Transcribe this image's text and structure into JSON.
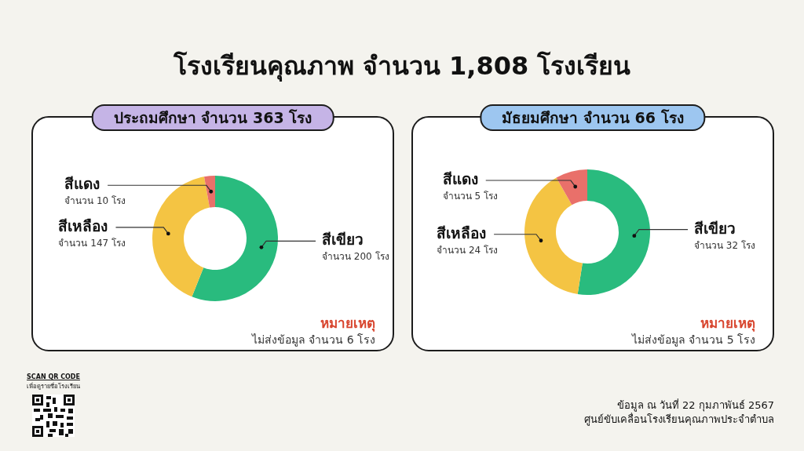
{
  "chart_data": [
    {
      "type": "other",
      "title": "โรงเรียนคุณภาพ จำนวน 1,808 โรงเรียน"
    },
    {
      "type": "donut",
      "title": "ประถมศึกษา จำนวน 363 โรง",
      "categories": [
        "สีเขียว",
        "สีเหลือง",
        "สีแดง"
      ],
      "values": [
        200,
        147,
        10
      ],
      "colors": [
        "#29bb7e",
        "#f4c443",
        "#e9706a"
      ],
      "value_labels": [
        "จำนวน 200 โรง",
        "จำนวน 147 โรง",
        "จำนวน 10 โรง"
      ],
      "annotations": [
        "หมายเหตุ",
        "ไม่ส่งข้อมูล จำนวน 6 โรง"
      ]
    },
    {
      "type": "donut",
      "title": "มัธยมศึกษา จำนวน 66 โรง",
      "categories": [
        "สีเขียว",
        "สีเหลือง",
        "สีแดง"
      ],
      "values": [
        32,
        24,
        5
      ],
      "colors": [
        "#29bb7e",
        "#f4c443",
        "#e9706a"
      ],
      "value_labels": [
        "จำนวน 32 โรง",
        "จำนวน 24 โรง",
        "จำนวน 5 โรง"
      ],
      "annotations": [
        "หมายเหตุ",
        "ไม่ส่งข้อมูล จำนวน 5 โรง"
      ]
    },
    {
      "type": "other",
      "annotations": [
        "SCAN QR CODE",
        "เพื่อดูรายชื่อโรงเรียน"
      ]
    },
    {
      "type": "other",
      "annotations": [
        "ข้อมูล ณ วันที่ 22 กุมภาพันธ์ 2567",
        "ศูนย์ขับเคลื่อนโรงเรียนคุณภาพประจำตำบล"
      ]
    }
  ]
}
